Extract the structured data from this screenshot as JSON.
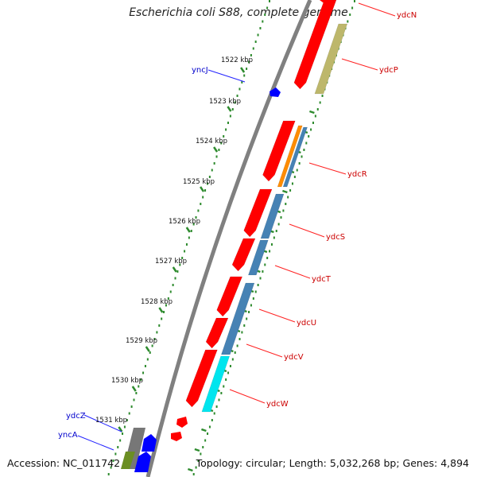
{
  "title": "Escherichia coli S88, complete genome",
  "accession_text": "Accession: NC_011742",
  "summary_text": "Topology: circular; Length: 5,032,268 bp; Genes: 4,894",
  "colors": {
    "backbone": "#808080",
    "tick": "#2e8b2e",
    "forward_label": "#0000cc",
    "reverse_label": "#cc0000",
    "gene_red": "#ff0000",
    "gene_blue": "#0000ff",
    "cds_tan": "#bdb76b",
    "cds_orange": "#ff8c00",
    "cds_steelblue": "#4682b4",
    "cds_cyan": "#00e5ee",
    "cds_olive": "#6b8e23",
    "cds_gray": "#777777"
  },
  "scale_labels": [
    "1522 kbp",
    "1523 kbp",
    "1524 kbp",
    "1525 kbp",
    "1526 kbp",
    "1527 kbp",
    "1528 kbp",
    "1529 kbp",
    "1530 kbp",
    "1531 kbp"
  ],
  "gene_labels_reverse": [
    "ydcN",
    "ydcP",
    "ydcR",
    "ydcS",
    "ydcT",
    "ydcU",
    "ydcV",
    "ydcW"
  ],
  "gene_labels_forward": [
    "yncJ",
    "ydcZ",
    "yncA"
  ]
}
